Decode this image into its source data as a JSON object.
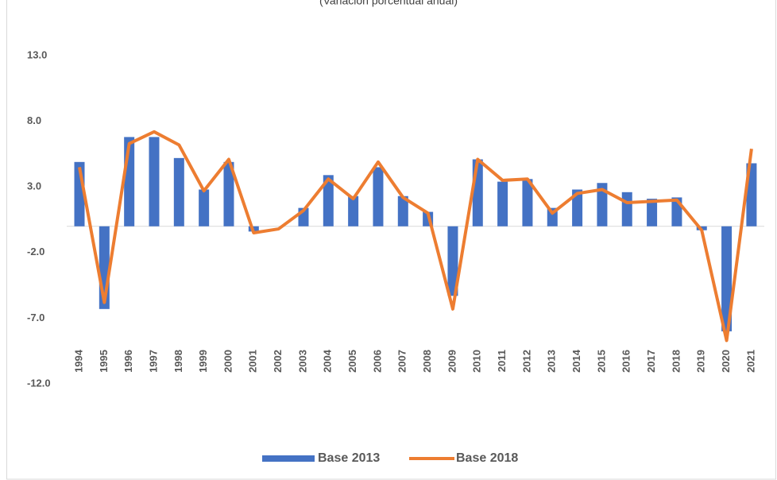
{
  "chart_data": {
    "type": "bar_line",
    "subtitle": "(Variación porcentual anual)",
    "categories": [
      "1994",
      "1995",
      "1996",
      "1997",
      "1998",
      "1999",
      "2000",
      "2001",
      "2002",
      "2003",
      "2004",
      "2005",
      "2006",
      "2007",
      "2008",
      "2009",
      "2010",
      "2011",
      "2012",
      "2013",
      "2014",
      "2015",
      "2016",
      "2017",
      "2018",
      "2019",
      "2020",
      "2021"
    ],
    "series": [
      {
        "name": "Base 2013",
        "type": "bar",
        "color": "#4472c4",
        "values": [
          4.9,
          -6.3,
          6.8,
          6.8,
          5.2,
          2.8,
          4.9,
          -0.4,
          0.0,
          1.4,
          3.9,
          2.3,
          4.5,
          2.3,
          1.1,
          -5.3,
          5.1,
          3.4,
          3.6,
          1.4,
          2.8,
          3.3,
          2.6,
          2.1,
          2.2,
          -0.3,
          -8.0,
          4.8
        ]
      },
      {
        "name": "Base 2018",
        "type": "line",
        "color": "#ed7d31",
        "values": [
          4.5,
          -5.8,
          6.3,
          7.2,
          6.2,
          2.7,
          5.1,
          -0.5,
          -0.2,
          1.2,
          3.6,
          2.1,
          4.9,
          2.2,
          1.0,
          -6.3,
          5.1,
          3.5,
          3.6,
          1.0,
          2.5,
          2.8,
          1.8,
          1.9,
          2.0,
          -0.3,
          -8.7,
          5.9
        ]
      }
    ],
    "ylim": [
      -12,
      13
    ],
    "yticks": [
      {
        "value": -12,
        "label": "-12.0"
      },
      {
        "value": -7,
        "label": "-7.0"
      },
      {
        "value": -2,
        "label": "-2.0"
      },
      {
        "value": 3,
        "label": "3.0"
      },
      {
        "value": 8,
        "label": "8.0"
      },
      {
        "value": 13,
        "label": "13.0"
      }
    ],
    "legend": "bottom"
  }
}
